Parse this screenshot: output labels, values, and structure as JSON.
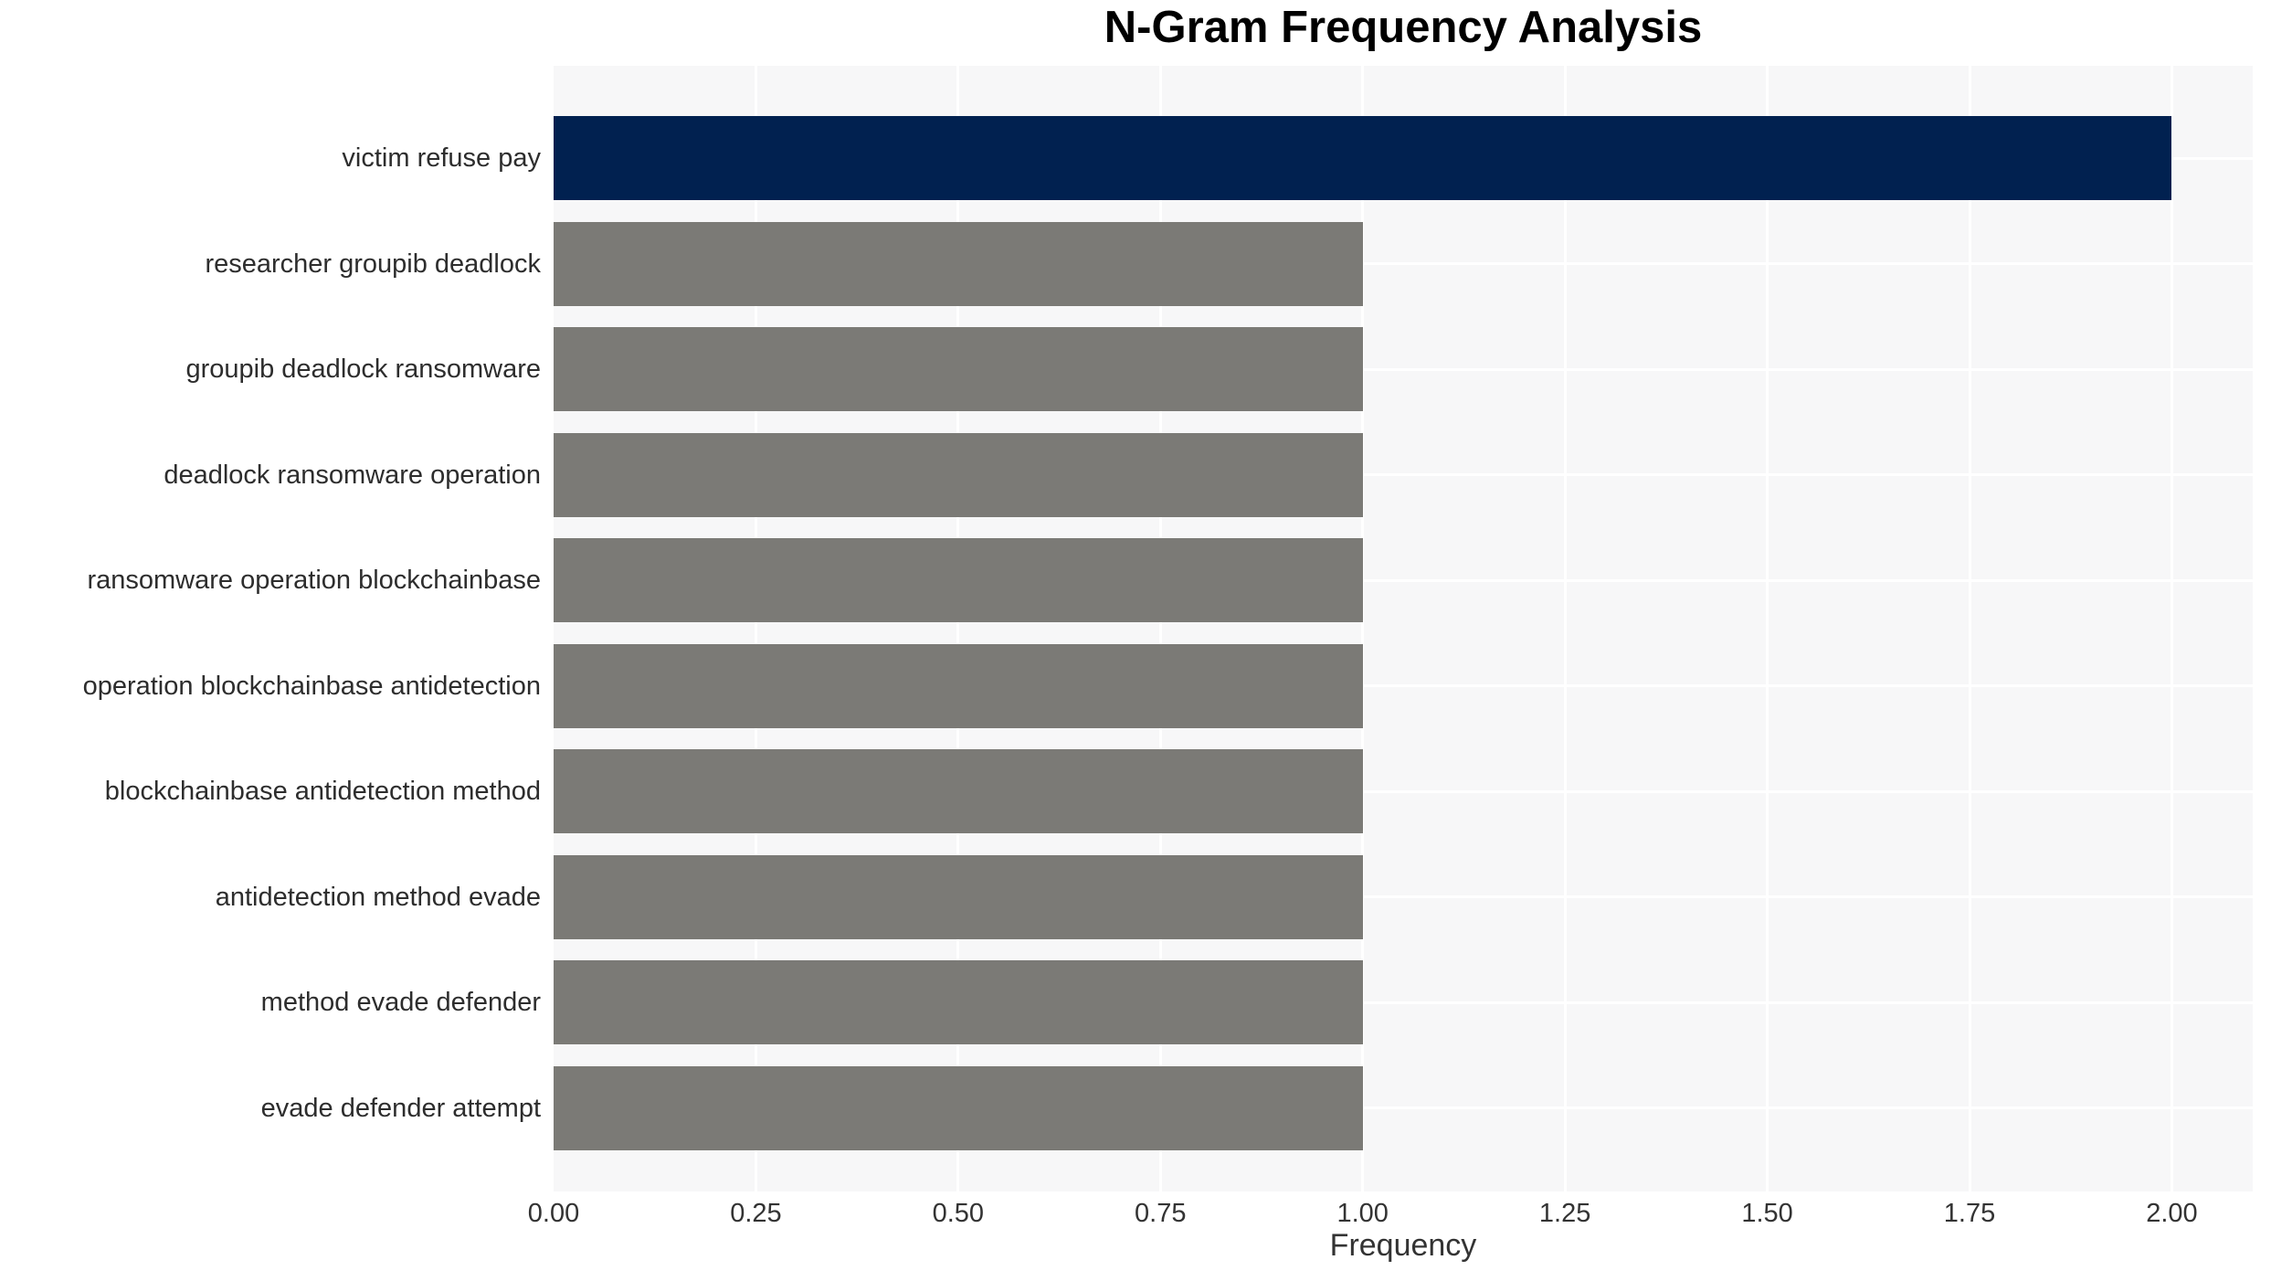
{
  "chart_data": {
    "type": "bar",
    "orientation": "horizontal",
    "title": "N-Gram Frequency Analysis",
    "xlabel": "Frequency",
    "ylabel": "",
    "categories": [
      "victim refuse pay",
      "researcher groupib deadlock",
      "groupib deadlock ransomware",
      "deadlock ransomware operation",
      "ransomware operation blockchainbase",
      "operation blockchainbase antidetection",
      "blockchainbase antidetection method",
      "antidetection method evade",
      "method evade defender",
      "evade defender attempt"
    ],
    "values": [
      2,
      1,
      1,
      1,
      1,
      1,
      1,
      1,
      1,
      1
    ],
    "bar_colors": [
      "#012150",
      "#7b7a76",
      "#7b7a76",
      "#7b7a76",
      "#7b7a76",
      "#7b7a76",
      "#7b7a76",
      "#7b7a76",
      "#7b7a76",
      "#7b7a76"
    ],
    "xlim": [
      0,
      2.1
    ],
    "xticks": [
      0,
      0.25,
      0.5,
      0.75,
      1.0,
      1.25,
      1.5,
      1.75,
      2.0
    ],
    "xtick_labels": [
      "0.00",
      "0.25",
      "0.50",
      "0.75",
      "1.00",
      "1.25",
      "1.50",
      "1.75",
      "2.00"
    ],
    "grid": true,
    "legend_position": "none",
    "plot_bgcolor": "#f7f7f8",
    "grid_color": "#ffffff",
    "highlight_color": "#012150",
    "default_bar_color": "#7b7a76",
    "text_color": "#2d2d2d"
  }
}
